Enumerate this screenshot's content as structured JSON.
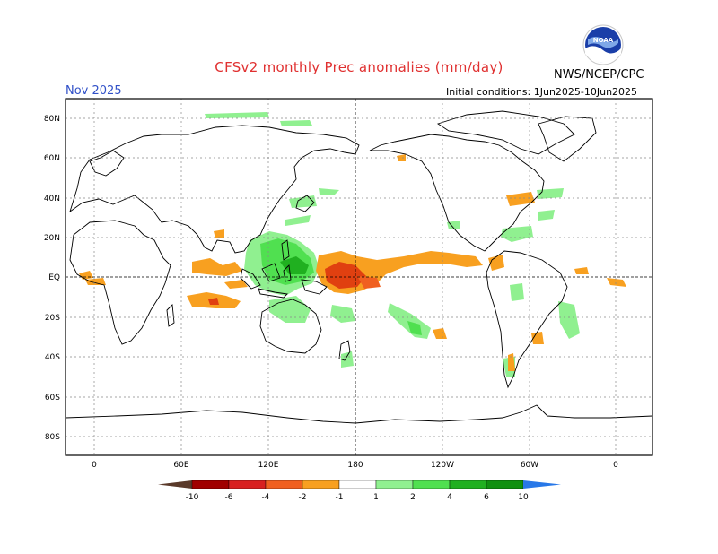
{
  "header": {
    "title": "CFSv2 monthly Prec anomalies (mm/day)",
    "month": "Nov 2025",
    "initial_conditions": "Initial conditions: 1Jun2025-10Jun2025",
    "org": "NWS/NCEP/CPC",
    "logo_text": "NOAA"
  },
  "axes": {
    "lat_labels": [
      "80N",
      "60N",
      "40N",
      "20N",
      "EQ",
      "20S",
      "40S",
      "60S",
      "80S"
    ],
    "lon_labels": [
      "0",
      "60E",
      "120E",
      "180",
      "120W",
      "60W",
      "0"
    ]
  },
  "colorbar": {
    "labels": [
      "-10",
      "-6",
      "-4",
      "-2",
      "-1",
      "1",
      "2",
      "4",
      "6",
      "10"
    ],
    "colors": [
      "#5a3a2a",
      "#a00000",
      "#d82020",
      "#f06020",
      "#f8a020",
      "#ffffff",
      "#90f090",
      "#50e050",
      "#20b020",
      "#109010",
      "#2878e8"
    ]
  },
  "colors": {
    "dry": "#f8a020",
    "very_dry": "#e04010",
    "wet": "#90f090",
    "very_wet": "#30c030"
  }
}
